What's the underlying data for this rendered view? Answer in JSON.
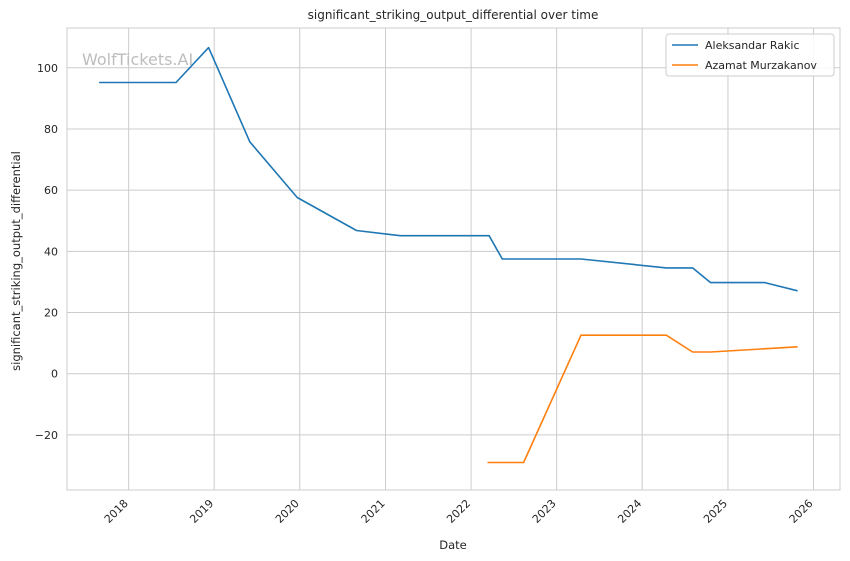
{
  "watermark": "WolfTickets.AI",
  "chart_data": {
    "type": "line",
    "title": "significant_striking_output_differential over time",
    "xlabel": "Date",
    "ylabel": "significant_striking_output_differential",
    "x_ticks": [
      "2018",
      "2019",
      "2020",
      "2021",
      "2022",
      "2023",
      "2024",
      "2025",
      "2026"
    ],
    "y_ticks": [
      "−20",
      "0",
      "20",
      "40",
      "60",
      "80",
      "100"
    ],
    "xlim": [
      "2017-04-13",
      "2026-04-24"
    ],
    "ylim": [
      -38,
      113
    ],
    "grid": true,
    "legend_position": "top-right",
    "series": [
      {
        "name": "Aleksandar Rakic",
        "color": "#1f77b4",
        "points": [
          [
            "2017-08-28",
            95.2
          ],
          [
            "2018-07-22",
            95.2
          ],
          [
            "2018-12-08",
            106.6
          ],
          [
            "2019-06-02",
            75.8
          ],
          [
            "2019-12-21",
            57.6
          ],
          [
            "2020-08-30",
            46.8
          ],
          [
            "2021-03-06",
            45.1
          ],
          [
            "2022-03-19",
            45.1
          ],
          [
            "2022-05-14",
            37.5
          ],
          [
            "2023-04-15",
            37.5
          ],
          [
            "2024-04-13",
            34.6
          ],
          [
            "2024-08-03",
            34.6
          ],
          [
            "2024-10-19",
            29.8
          ],
          [
            "2025-06-07",
            29.8
          ],
          [
            "2025-10-25",
            27.1
          ]
        ]
      },
      {
        "name": "Azamat Murzakanov",
        "color": "#ff7f0e",
        "points": [
          [
            "2022-03-12",
            -29.0
          ],
          [
            "2022-08-13",
            -29.0
          ],
          [
            "2023-04-15",
            12.6
          ],
          [
            "2024-04-13",
            12.6
          ],
          [
            "2024-08-03",
            7.1
          ],
          [
            "2024-10-19",
            7.1
          ],
          [
            "2025-10-25",
            8.8
          ]
        ]
      }
    ]
  }
}
